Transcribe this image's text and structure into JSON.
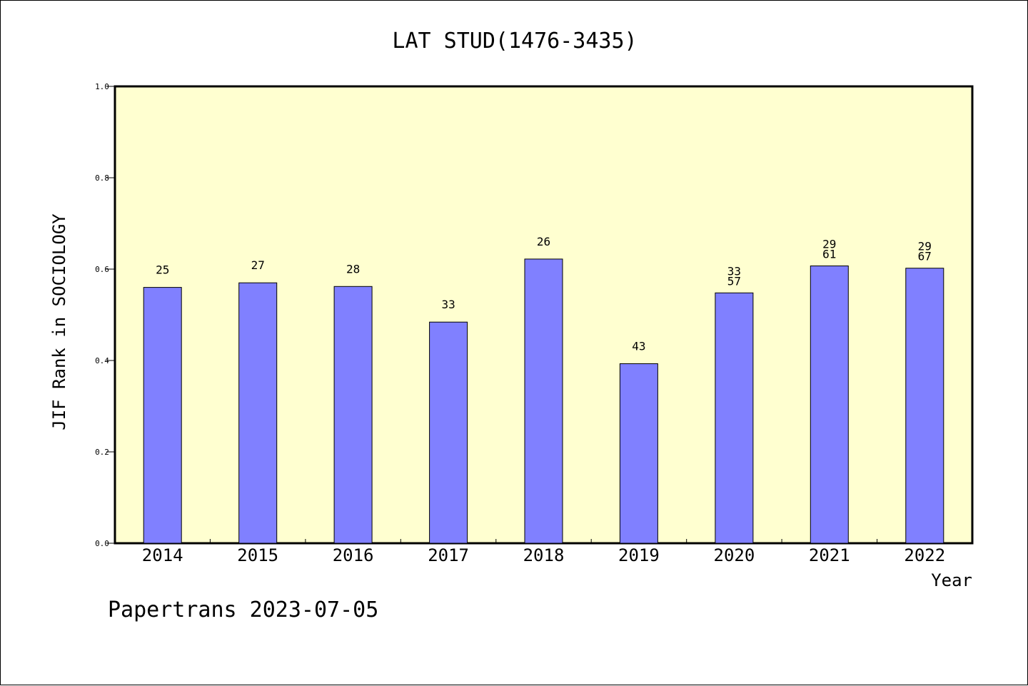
{
  "chart_data": {
    "type": "bar",
    "title": "LAT STUD(1476-3435)",
    "xlabel": "Year",
    "ylabel": "JIF Rank in SOCIOLOGY",
    "ylim": [
      0,
      1.0
    ],
    "yticks": [
      "0.0",
      "0.2",
      "0.4",
      "0.6",
      "0.8",
      "1.0"
    ],
    "categories": [
      "2014",
      "2015",
      "2016",
      "2017",
      "2018",
      "2019",
      "2020",
      "2021",
      "2022"
    ],
    "values": [
      0.56,
      0.57,
      0.562,
      0.484,
      0.622,
      0.393,
      0.548,
      0.607,
      0.602
    ],
    "labels": [
      [
        "25"
      ],
      [
        "27"
      ],
      [
        "28"
      ],
      [
        "33"
      ],
      [
        "26"
      ],
      [
        "43"
      ],
      [
        "33",
        "57"
      ],
      [
        "29",
        "61"
      ],
      [
        "29",
        "67"
      ]
    ],
    "grid": false,
    "background_color": "#ffffd0",
    "bar_color": "#8080ff"
  },
  "footer": {
    "text": "Papertrans 2023-07-05"
  }
}
